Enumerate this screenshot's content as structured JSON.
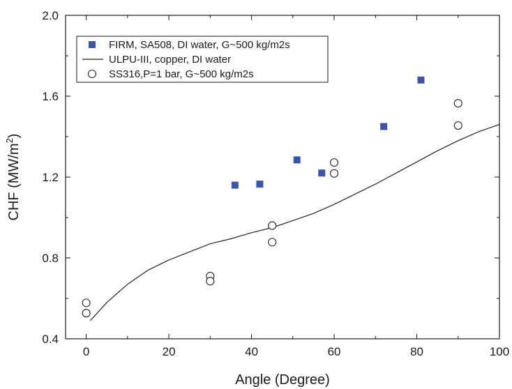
{
  "chart_data": {
    "type": "scatter",
    "xlabel": "Angle (Degree)",
    "ylabel": {
      "main": "CHF (MW/m",
      "superscript": "2",
      "close": ")"
    },
    "xlim": [
      -5,
      100
    ],
    "ylim": [
      0.4,
      2.0
    ],
    "x_ticks": [
      0,
      20,
      40,
      60,
      80,
      100
    ],
    "y_ticks": [
      0.4,
      0.8,
      1.2,
      1.6,
      2.0
    ],
    "x_tick_labels": [
      "0",
      "20",
      "40",
      "60",
      "80",
      "100"
    ],
    "y_tick_labels": [
      "0.4",
      "0.8",
      "1.2",
      "1.6",
      "2.0"
    ],
    "grid": false,
    "legend_position": "top-left",
    "series": [
      {
        "name": "FIRM, SA508, DI water, G~500 kg/m2s",
        "marker": "filled-square",
        "color": "#3a55a8",
        "points": [
          [
            36,
            1.16
          ],
          [
            42,
            1.165
          ],
          [
            51,
            1.285
          ],
          [
            57,
            1.22
          ],
          [
            72,
            1.45
          ],
          [
            81,
            1.68
          ]
        ]
      },
      {
        "name": "ULPU-III, copper, DI water",
        "marker": "line",
        "color": "#222222",
        "points": [
          [
            1,
            0.49
          ],
          [
            5,
            0.58
          ],
          [
            10,
            0.67
          ],
          [
            15,
            0.74
          ],
          [
            20,
            0.79
          ],
          [
            25,
            0.83
          ],
          [
            30,
            0.87
          ],
          [
            35,
            0.895
          ],
          [
            40,
            0.925
          ],
          [
            45,
            0.95
          ],
          [
            50,
            0.985
          ],
          [
            55,
            1.02
          ],
          [
            60,
            1.065
          ],
          [
            65,
            1.115
          ],
          [
            70,
            1.165
          ],
          [
            75,
            1.22
          ],
          [
            80,
            1.275
          ],
          [
            85,
            1.33
          ],
          [
            90,
            1.38
          ],
          [
            95,
            1.425
          ],
          [
            100,
            1.46
          ]
        ]
      },
      {
        "name": "SS316,P=1 bar, G~500 kg/m2s",
        "marker": "open-circle",
        "color": "#222222",
        "points": [
          [
            0,
            0.578
          ],
          [
            0,
            0.527
          ],
          [
            30,
            0.71
          ],
          [
            30,
            0.685
          ],
          [
            45,
            0.96
          ],
          [
            45,
            0.878
          ],
          [
            60,
            1.272
          ],
          [
            60,
            1.218
          ],
          [
            90,
            1.565
          ],
          [
            90,
            1.455
          ]
        ]
      }
    ]
  }
}
